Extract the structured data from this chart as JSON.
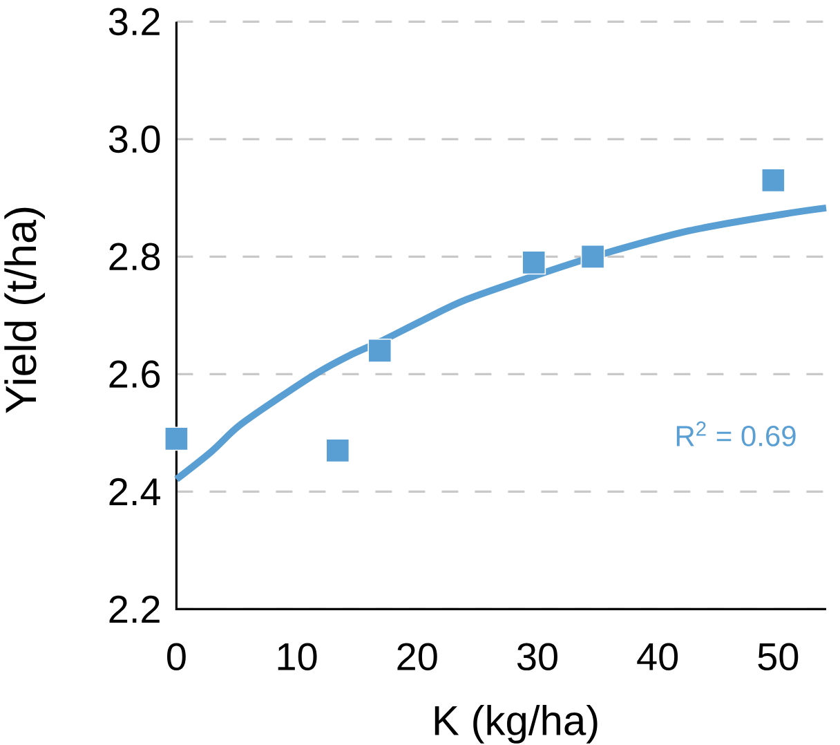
{
  "chart_data": {
    "type": "scatter",
    "xlabel": "K (kg/ha)",
    "ylabel": "Yield (t/ha)",
    "xlim": [
      0,
      54
    ],
    "ylim": [
      2.2,
      3.2
    ],
    "xticks": [
      0,
      10,
      20,
      30,
      40,
      50
    ],
    "yticks": [
      2.2,
      2.4,
      2.6,
      2.8,
      {
        "value": 3.0,
        "label": "3.0"
      },
      3.2
    ],
    "grid": "y",
    "marker": "square",
    "series": [
      {
        "color": "#5a9fd4",
        "x": [
          0,
          13.4,
          16.9,
          29.7,
          34.6,
          49.6
        ],
        "values": [
          2.49,
          2.47,
          2.64,
          2.79,
          2.8,
          2.93
        ]
      },
      {
        "type": "line",
        "color": "#5a9fd4",
        "marker": "none",
        "line_style": "solid",
        "x": [
          0,
          2.9,
          5.2,
          8.7,
          11.7,
          14.4,
          17.1,
          20.5,
          24.1,
          29.7,
          35,
          42.6,
          50.3,
          54
        ],
        "values": [
          2.421,
          2.468,
          2.512,
          2.562,
          2.602,
          2.632,
          2.657,
          2.692,
          2.727,
          2.767,
          2.802,
          2.844,
          2.872,
          2.883
        ]
      }
    ],
    "annotations": [
      "R$^{2}$ = 0.69"
    ]
  }
}
